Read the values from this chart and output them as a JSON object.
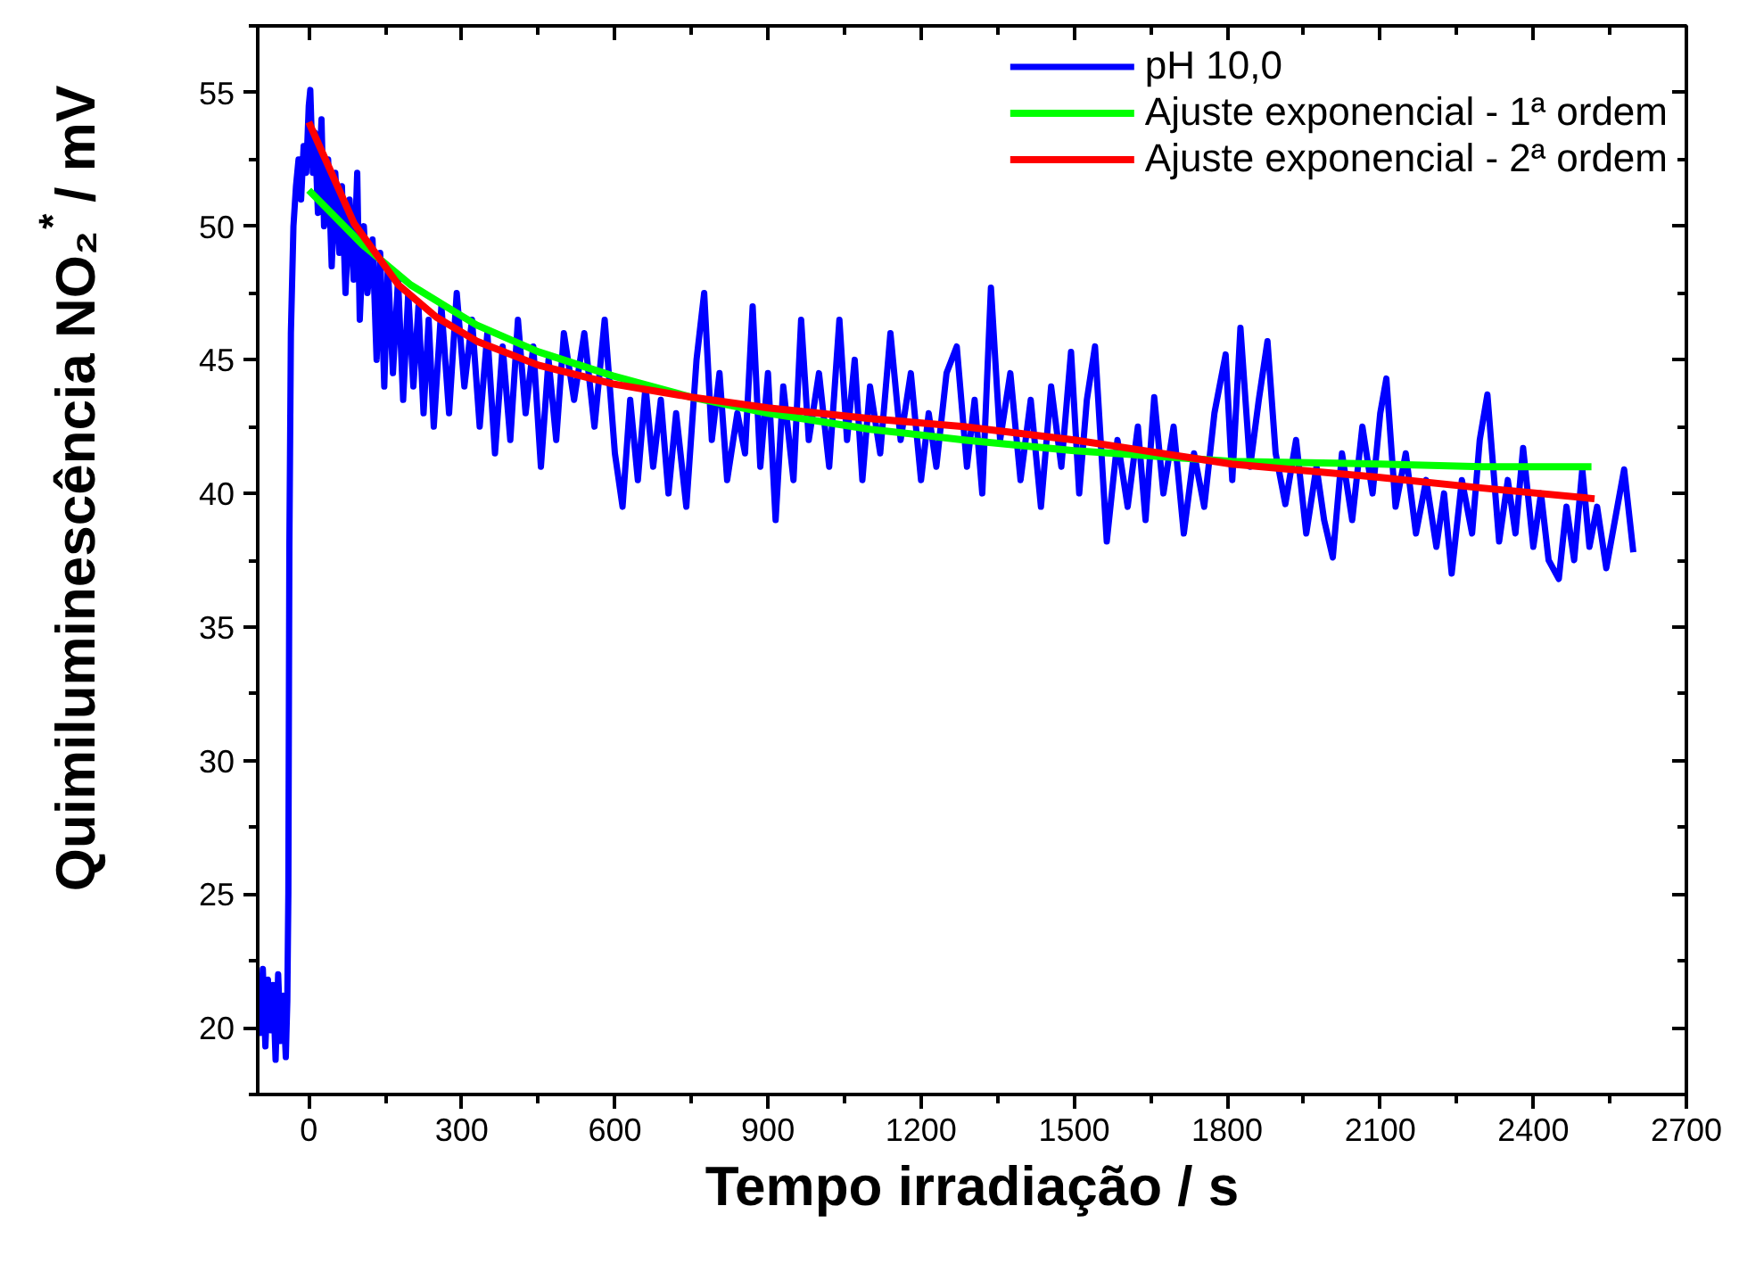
{
  "chart_data": {
    "type": "line",
    "xlabel": "Tempo irradiação / s",
    "ylabel": "Quimiluminescência NO₂$^{*}$ / mV",
    "xlim": [
      -100,
      2700
    ],
    "xticks": [
      0,
      300,
      600,
      900,
      1200,
      1500,
      1800,
      2100,
      2400,
      2700
    ],
    "ylim": [
      17.5,
      57.5
    ],
    "yticks": [
      20,
      25,
      30,
      35,
      40,
      45,
      50,
      55
    ],
    "grid": false,
    "legend": "top right",
    "line_style": "solid",
    "marker": "none",
    "series": [
      {
        "name": "pH 10,0",
        "color": "#0000ff",
        "x": [
          -100,
          -95,
          -90,
          -85,
          -80,
          -75,
          -70,
          -65,
          -60,
          -55,
          -50,
          -45,
          -42,
          -40,
          -38,
          -35,
          -30,
          -25,
          -20,
          -15,
          -10,
          -5,
          0,
          3,
          8,
          12,
          18,
          25,
          30,
          38,
          45,
          52,
          60,
          65,
          72,
          80,
          88,
          95,
          100,
          108,
          115,
          125,
          133,
          140,
          148,
          155,
          165,
          175,
          185,
          195,
          205,
          215,
          225,
          235,
          245,
          260,
          275,
          290,
          305,
          320,
          335,
          350,
          365,
          380,
          395,
          410,
          425,
          440,
          455,
          470,
          485,
          500,
          520,
          540,
          560,
          580,
          600,
          615,
          630,
          645,
          660,
          675,
          690,
          705,
          720,
          740,
          760,
          775,
          790,
          805,
          820,
          840,
          855,
          870,
          885,
          900,
          915,
          930,
          950,
          965,
          980,
          1000,
          1020,
          1040,
          1055,
          1070,
          1085,
          1100,
          1120,
          1140,
          1160,
          1180,
          1200,
          1215,
          1230,
          1250,
          1270,
          1290,
          1305,
          1320,
          1337,
          1355,
          1375,
          1395,
          1415,
          1435,
          1455,
          1475,
          1494,
          1510,
          1525,
          1541,
          1564,
          1585,
          1605,
          1625,
          1640,
          1657,
          1675,
          1695,
          1715,
          1735,
          1755,
          1775,
          1797,
          1810,
          1826,
          1845,
          1862,
          1879,
          1895,
          1914,
          1935,
          1955,
          1975,
          1990,
          2007,
          2025,
          2045,
          2065,
          2085,
          2100,
          2112,
          2130,
          2150,
          2170,
          2190,
          2210,
          2225,
          2240,
          2260,
          2280,
          2295,
          2310,
          2333,
          2350,
          2365,
          2380,
          2400,
          2415,
          2430,
          2450,
          2465,
          2480,
          2496,
          2510,
          2525,
          2543,
          2560,
          2578,
          2596
        ],
        "values": [
          21.5,
          19.8,
          22.2,
          19.3,
          21.8,
          19.9,
          21.6,
          18.8,
          22.0,
          19.5,
          21.2,
          18.9,
          21.0,
          25,
          38,
          46,
          50,
          51.5,
          52.5,
          51,
          53,
          52,
          54.5,
          55.1,
          52,
          53.5,
          50.5,
          54,
          50,
          52.5,
          48.5,
          52,
          49,
          51.5,
          47.5,
          51,
          48,
          52,
          46.5,
          50,
          47.5,
          49.5,
          45,
          49,
          44,
          48.5,
          44.5,
          48,
          43.5,
          47.5,
          44,
          47,
          43,
          46.5,
          42.5,
          47,
          43,
          47.5,
          44,
          46.5,
          42.5,
          46,
          41.5,
          45.5,
          42,
          46.5,
          43,
          45.5,
          41,
          45,
          42,
          46,
          43.5,
          46,
          42.5,
          46.5,
          41.5,
          39.5,
          43.5,
          40.5,
          44,
          41,
          43.5,
          40,
          43,
          39.5,
          45,
          47.5,
          42,
          44.5,
          40.5,
          43,
          41.5,
          47,
          41,
          44.5,
          39,
          44,
          40.5,
          46.5,
          42,
          44.5,
          41,
          46.5,
          42,
          45,
          40.5,
          44,
          41.5,
          46,
          42,
          44.5,
          40.5,
          43,
          41,
          44.5,
          45.5,
          41,
          43.5,
          40,
          47.7,
          42,
          44.5,
          40.5,
          43.5,
          39.5,
          44,
          41,
          45.3,
          40,
          43.5,
          45.5,
          38.2,
          42,
          39.5,
          42.5,
          39,
          43.6,
          40,
          42.5,
          38.5,
          41.5,
          39.5,
          43,
          45.2,
          40.5,
          46.2,
          41,
          43.5,
          45.7,
          41.5,
          39.6,
          42,
          38.5,
          41,
          39,
          37.6,
          41.5,
          39,
          42.5,
          40,
          43,
          44.3,
          39.5,
          41.5,
          38.5,
          40.5,
          38,
          40,
          37,
          40.5,
          38.5,
          42,
          43.7,
          38.2,
          40.5,
          38.5,
          41.7,
          38,
          40,
          37.5,
          36.8,
          39.5,
          37.5,
          40.9,
          38,
          39.5,
          37.2,
          39,
          40.9,
          37.8
        ]
      },
      {
        "name": "Ajuste exponencial - 1ª ordem",
        "color": "#00ff00",
        "x": [
          0,
          106,
          200,
          329,
          450,
          596,
          750,
          900,
          1100,
          1284,
          1500,
          1809,
          2100,
          2300,
          2514
        ],
        "values": [
          51.35,
          49.3,
          47.8,
          46.3,
          45.3,
          44.4,
          43.6,
          43.0,
          42.4,
          42.0,
          41.6,
          41.2,
          41.1,
          41.0,
          41.0
        ]
      },
      {
        "name": "Ajuste exponencial - 2ª ordem",
        "color": "#ff0000",
        "x": [
          0,
          89,
          176,
          250,
          329,
          450,
          596,
          750,
          900,
          1100,
          1284,
          1500,
          1809,
          2100,
          2300,
          2520
        ],
        "values": [
          53.9,
          50.1,
          47.8,
          46.6,
          45.7,
          44.8,
          44.1,
          43.6,
          43.2,
          42.8,
          42.5,
          42.0,
          41.1,
          40.6,
          40.2,
          39.8
        ]
      }
    ]
  }
}
